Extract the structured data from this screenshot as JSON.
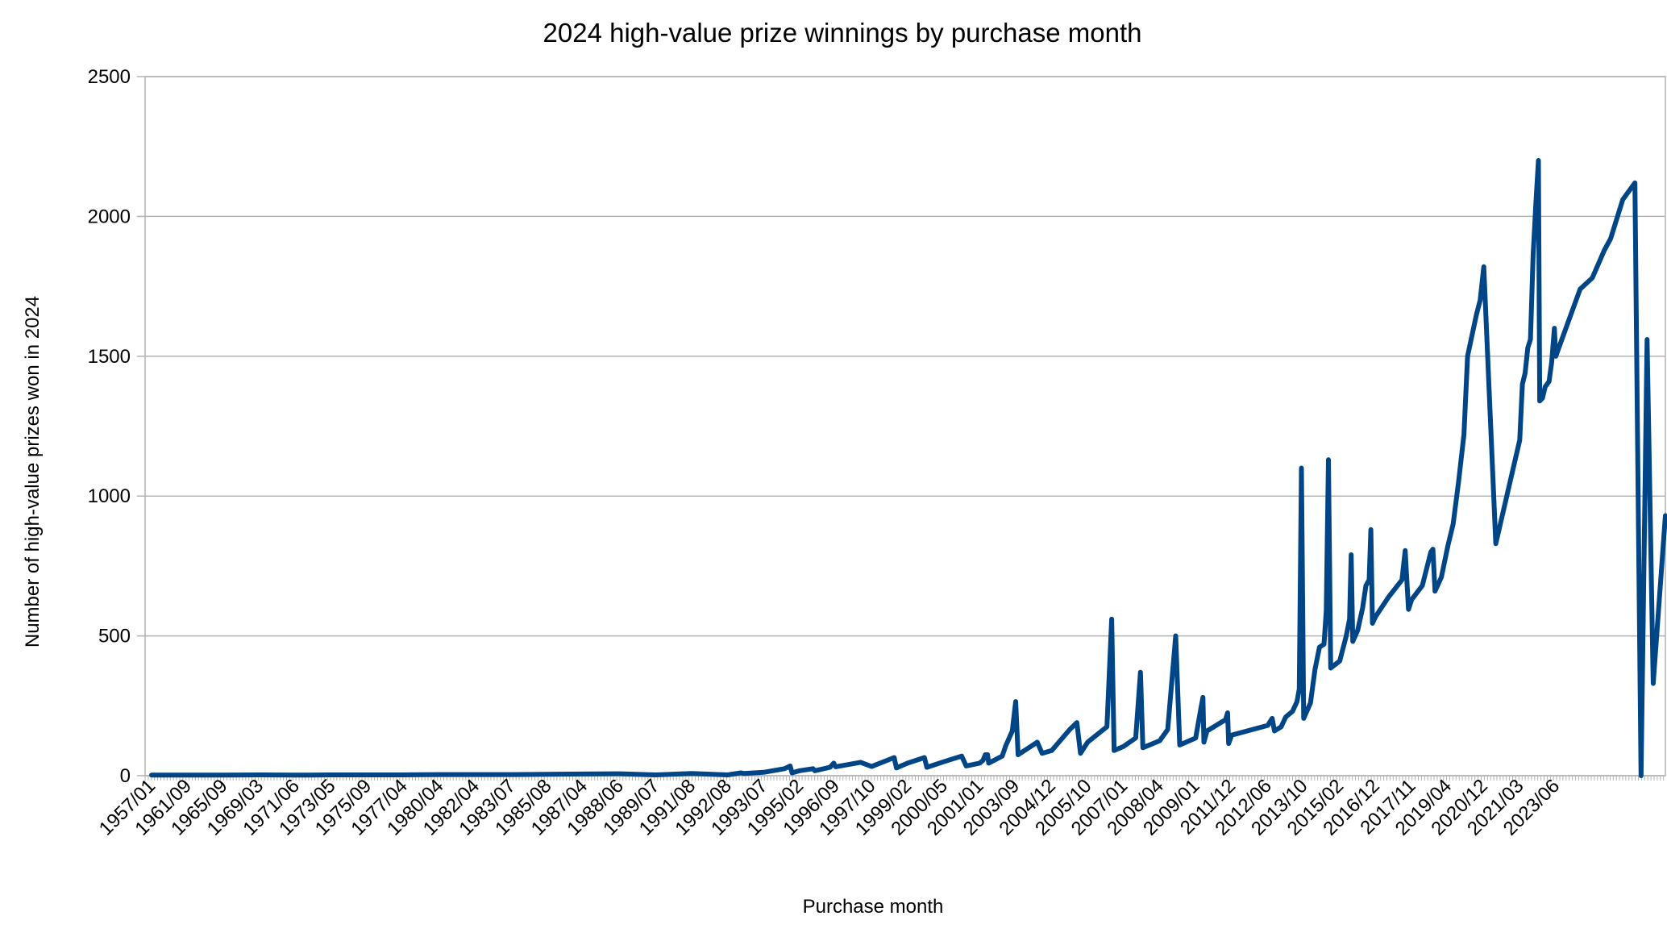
{
  "chart_data": {
    "type": "line",
    "title": "2024 high-value prize winnings by purchase month",
    "xlabel": "Purchase month",
    "ylabel": "Number of high-value prizes won in 2024",
    "ylim": [
      0,
      2500
    ],
    "y_ticks": [
      0,
      500,
      1000,
      1500,
      2000,
      2500
    ],
    "x_tick_labels": [
      "1957/01",
      "1961/09",
      "1965/09",
      "1969/03",
      "1971/06",
      "1973/05",
      "1975/09",
      "1977/04",
      "1980/04",
      "1982/04",
      "1983/07",
      "1985/08",
      "1987/04",
      "1988/06",
      "1989/07",
      "1991/08",
      "1992/08",
      "1993/07",
      "1995/02",
      "1996/09",
      "1997/10",
      "1999/02",
      "2000/05",
      "2001/01",
      "2003/09",
      "2004/12",
      "2005/10",
      "2007/01",
      "2008/04",
      "2009/01",
      "2011/12",
      "2012/06",
      "2013/10",
      "2015/02",
      "2016/12",
      "2017/11",
      "2019/04",
      "2020/12",
      "2021/03",
      "2023/06"
    ],
    "grid": "horizontal",
    "legend": "none",
    "line_color": "#004586",
    "series": [
      {
        "points": [
          [
            "1957/01",
            2
          ],
          [
            "1961/09",
            2
          ],
          [
            "1965/09",
            2
          ],
          [
            "1969/03",
            3
          ],
          [
            "1971/06",
            2
          ],
          [
            "1973/05",
            3
          ],
          [
            "1975/09",
            3
          ],
          [
            "1977/04",
            3
          ],
          [
            "1980/04",
            4
          ],
          [
            "1982/04",
            4
          ],
          [
            "1983/07",
            4
          ],
          [
            "1985/08",
            5
          ],
          [
            "1987/04",
            6
          ],
          [
            "1988/06",
            7
          ],
          [
            "1989/07",
            3
          ],
          [
            "1991/08",
            8
          ],
          [
            "1992/08",
            3
          ],
          [
            "1992/12",
            10
          ],
          [
            "1993/01",
            8
          ],
          [
            "1993/07",
            12
          ],
          [
            "1994/06",
            25
          ],
          [
            "1994/09",
            35
          ],
          [
            "1994/10",
            10
          ],
          [
            "1995/02",
            18
          ],
          [
            "1995/09",
            25
          ],
          [
            "1995/10",
            18
          ],
          [
            "1996/06",
            30
          ],
          [
            "1996/08",
            45
          ],
          [
            "1996/09",
            32
          ],
          [
            "1997/06",
            48
          ],
          [
            "1997/10",
            33
          ],
          [
            "1998/08",
            65
          ],
          [
            "1998/09",
            28
          ],
          [
            "1999/02",
            45
          ],
          [
            "1999/09",
            65
          ],
          [
            "1999/10",
            30
          ],
          [
            "2000/05",
            50
          ],
          [
            "2000/09",
            70
          ],
          [
            "2000/10",
            35
          ],
          [
            "2001/01",
            45
          ],
          [
            "2001/04",
            55
          ],
          [
            "2001/06",
            75
          ],
          [
            "2001/08",
            75
          ],
          [
            "2001/09",
            45
          ],
          [
            "2002/09",
            70
          ],
          [
            "2002/12",
            105
          ],
          [
            "2003/06",
            160
          ],
          [
            "2003/09",
            265
          ],
          [
            "2003/10",
            75
          ],
          [
            "2004/06",
            120
          ],
          [
            "2004/08",
            80
          ],
          [
            "2004/12",
            90
          ],
          [
            "2005/05",
            165
          ],
          [
            "2005/07",
            190
          ],
          [
            "2005/08",
            80
          ],
          [
            "2005/10",
            120
          ],
          [
            "2006/06",
            175
          ],
          [
            "2006/08",
            560
          ],
          [
            "2006/09",
            90
          ],
          [
            "2007/01",
            105
          ],
          [
            "2007/06",
            135
          ],
          [
            "2007/08",
            370
          ],
          [
            "2007/09",
            100
          ],
          [
            "2008/04",
            125
          ],
          [
            "2008/06",
            165
          ],
          [
            "2008/08",
            500
          ],
          [
            "2008/09",
            110
          ],
          [
            "2009/01",
            135
          ],
          [
            "2009/06",
            240
          ],
          [
            "2009/08",
            280
          ],
          [
            "2009/09",
            120
          ],
          [
            "2009/12",
            160
          ],
          [
            "2011/06",
            200
          ],
          [
            "2011/08",
            225
          ],
          [
            "2011/09",
            115
          ],
          [
            "2011/12",
            145
          ],
          [
            "2012/06",
            180
          ],
          [
            "2012/08",
            205
          ],
          [
            "2012/09",
            160
          ],
          [
            "2012/12",
            175
          ],
          [
            "2013/02",
            210
          ],
          [
            "2013/05",
            230
          ],
          [
            "2013/07",
            265
          ],
          [
            "2013/08",
            310
          ],
          [
            "2013/09",
            1100
          ],
          [
            "2013/10",
            205
          ],
          [
            "2014/01",
            260
          ],
          [
            "2014/03",
            380
          ],
          [
            "2014/05",
            460
          ],
          [
            "2014/07",
            470
          ],
          [
            "2014/08",
            590
          ],
          [
            "2014/09",
            1130
          ],
          [
            "2014/10",
            385
          ],
          [
            "2015/02",
            410
          ],
          [
            "2015/06",
            500
          ],
          [
            "2015/08",
            560
          ],
          [
            "2015/09",
            790
          ],
          [
            "2015/10",
            480
          ],
          [
            "2016/01",
            520
          ],
          [
            "2016/04",
            600
          ],
          [
            "2016/06",
            680
          ],
          [
            "2016/08",
            700
          ],
          [
            "2016/09",
            880
          ],
          [
            "2016/10",
            545
          ],
          [
            "2016/12",
            570
          ],
          [
            "2017/04",
            640
          ],
          [
            "2017/08",
            700
          ],
          [
            "2017/09",
            805
          ],
          [
            "2017/10",
            595
          ],
          [
            "2017/11",
            630
          ],
          [
            "2018/04",
            680
          ],
          [
            "2018/08",
            800
          ],
          [
            "2018/09",
            810
          ],
          [
            "2018/10",
            660
          ],
          [
            "2019/01",
            710
          ],
          [
            "2019/04",
            820
          ],
          [
            "2019/07",
            900
          ],
          [
            "2019/10",
            1050
          ],
          [
            "2020/01",
            1220
          ],
          [
            "2020/03",
            1500
          ],
          [
            "2020/05",
            1560
          ],
          [
            "2020/08",
            1650
          ],
          [
            "2020/10",
            1700
          ],
          [
            "2020/12",
            1820
          ],
          [
            "2021/01",
            830
          ],
          [
            "2021/03",
            1200
          ],
          [
            "2021/05",
            1400
          ],
          [
            "2021/07",
            1440
          ],
          [
            "2021/09",
            1530
          ],
          [
            "2021/11",
            1560
          ],
          [
            "2022/01",
            1860
          ],
          [
            "2022/03",
            2040
          ],
          [
            "2022/05",
            2200
          ],
          [
            "2022/06",
            1340
          ],
          [
            "2022/08",
            1350
          ],
          [
            "2022/10",
            1390
          ],
          [
            "2023/01",
            1410
          ],
          [
            "2023/03",
            1480
          ],
          [
            "2023/05",
            1600
          ],
          [
            "2023/06",
            1500
          ],
          [
            "2023/08",
            1620
          ],
          [
            "2023/10",
            1740
          ],
          [
            "2023/12",
            1780
          ],
          [
            "2024/02",
            1880
          ],
          [
            "2024/03",
            1920
          ],
          [
            "2024/05",
            2060
          ],
          [
            "2024/07",
            2120
          ],
          [
            "2024/08",
            0
          ],
          [
            "2024/09",
            1560
          ],
          [
            "2024/10",
            330
          ],
          [
            "2024/12",
            930
          ]
        ]
      }
    ]
  }
}
